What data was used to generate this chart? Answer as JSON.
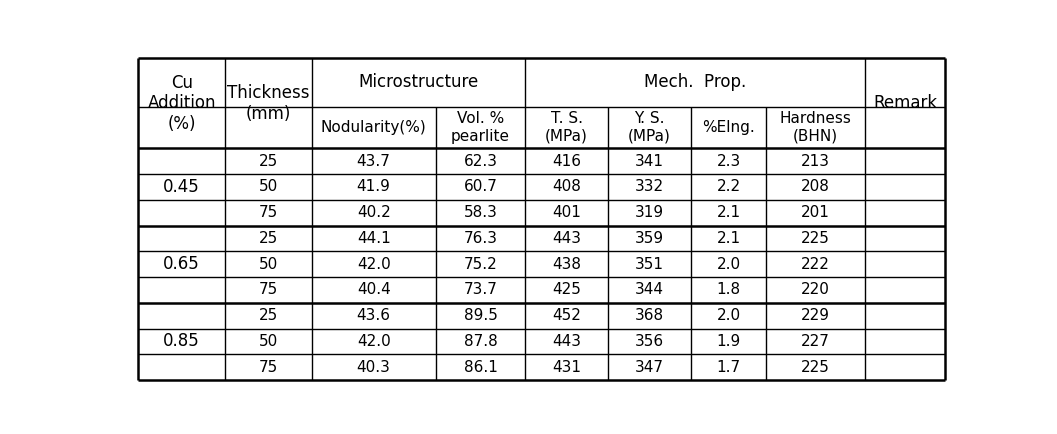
{
  "background_color": "#ffffff",
  "text_color": "#000000",
  "groups": [
    {
      "cu": "0.45",
      "rows": [
        [
          "25",
          "43.7",
          "62.3",
          "416",
          "341",
          "2.3",
          "213"
        ],
        [
          "50",
          "41.9",
          "60.7",
          "408",
          "332",
          "2.2",
          "208"
        ],
        [
          "75",
          "40.2",
          "58.3",
          "401",
          "319",
          "2.1",
          "201"
        ]
      ]
    },
    {
      "cu": "0.65",
      "rows": [
        [
          "25",
          "44.1",
          "76.3",
          "443",
          "359",
          "2.1",
          "225"
        ],
        [
          "50",
          "42.0",
          "75.2",
          "438",
          "351",
          "2.0",
          "222"
        ],
        [
          "75",
          "40.4",
          "73.7",
          "425",
          "344",
          "1.8",
          "220"
        ]
      ]
    },
    {
      "cu": "0.85",
      "rows": [
        [
          "25",
          "43.6",
          "89.5",
          "452",
          "368",
          "2.0",
          "229"
        ],
        [
          "50",
          "42.0",
          "87.8",
          "443",
          "356",
          "1.9",
          "227"
        ],
        [
          "75",
          "40.3",
          "86.1",
          "431",
          "347",
          "1.7",
          "225"
        ]
      ]
    }
  ],
  "col_labels": [
    "Nodularity(%)",
    "Vol. %\npearlite",
    "T. S.\n(MPa)",
    "Y. S.\n(MPa)",
    "%Elng.",
    "Hardness\n(BHN)"
  ],
  "span_header_micro": "Microstructure",
  "span_header_mech": "Mech.  Prop.",
  "col_cu": "Cu\nAddition\n(%)",
  "col_thickness": "Thickness\n(mm)",
  "col_remark": "Remark",
  "line_color": "#000000",
  "thin_lw": 1.0,
  "thick_lw": 1.8,
  "data_fontsize": 11.0,
  "header_fontsize": 12.0,
  "font_family": "DejaVu Sans"
}
